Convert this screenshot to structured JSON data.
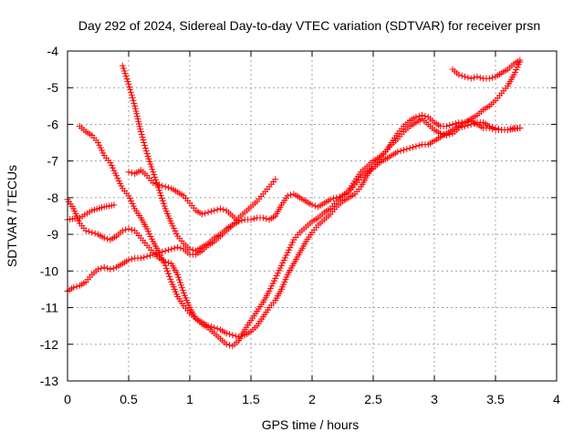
{
  "chart_data": {
    "type": "scatter",
    "title": "Day 292 of 2024, Sidereal Day-to-day VTEC variation (SDTVAR) for receiver prsn",
    "xlabel": "GPS time / hours",
    "ylabel": "SDTVAR / TECUs",
    "xlim": [
      0,
      4
    ],
    "ylim": [
      -13,
      -4
    ],
    "xticks": [
      0,
      0.5,
      1,
      1.5,
      2,
      2.5,
      3,
      3.5,
      4
    ],
    "xtick_labels": [
      "0",
      "0.5",
      "1",
      "1.5",
      "2",
      "2.5",
      "3",
      "3.5",
      "4"
    ],
    "yticks": [
      -13,
      -12,
      -11,
      -10,
      -9,
      -8,
      -7,
      -6,
      -5,
      -4
    ],
    "ytick_labels": [
      "-13",
      "-12",
      "-11",
      "-10",
      "-9",
      "-8",
      "-7",
      "-6",
      "-5",
      "-4"
    ],
    "grid": true,
    "marker": "+",
    "color": "#ff0000",
    "series": [
      {
        "points": [
          [
            0.0,
            -8.6
          ],
          [
            0.1,
            -8.55
          ],
          [
            0.2,
            -8.35
          ],
          [
            0.3,
            -8.25
          ],
          [
            0.38,
            -8.2
          ]
        ]
      },
      {
        "points": [
          [
            0.0,
            -8.05
          ],
          [
            0.05,
            -8.3
          ],
          [
            0.1,
            -8.7
          ],
          [
            0.15,
            -8.9
          ],
          [
            0.2,
            -8.95
          ],
          [
            0.25,
            -9.0
          ],
          [
            0.3,
            -9.1
          ],
          [
            0.35,
            -9.15
          ],
          [
            0.4,
            -9.05
          ],
          [
            0.45,
            -8.9
          ],
          [
            0.5,
            -8.85
          ],
          [
            0.55,
            -8.9
          ],
          [
            0.6,
            -9.1
          ],
          [
            0.65,
            -9.3
          ],
          [
            0.7,
            -9.5
          ],
          [
            0.75,
            -9.65
          ],
          [
            0.8,
            -9.75
          ],
          [
            0.85,
            -9.8
          ],
          [
            0.9,
            -10.1
          ],
          [
            0.95,
            -10.6
          ],
          [
            1.0,
            -11.0
          ],
          [
            1.05,
            -11.3
          ],
          [
            1.1,
            -11.4
          ],
          [
            1.15,
            -11.5
          ],
          [
            1.2,
            -11.55
          ],
          [
            1.25,
            -11.6
          ],
          [
            1.3,
            -11.7
          ],
          [
            1.35,
            -11.75
          ],
          [
            1.4,
            -11.8
          ],
          [
            1.45,
            -11.75
          ],
          [
            1.5,
            -11.65
          ],
          [
            1.55,
            -11.5
          ],
          [
            1.6,
            -11.25
          ],
          [
            1.65,
            -11.0
          ],
          [
            1.7,
            -10.8
          ],
          [
            1.75,
            -10.5
          ],
          [
            1.8,
            -10.1
          ],
          [
            1.85,
            -9.8
          ],
          [
            1.9,
            -9.5
          ],
          [
            1.95,
            -9.2
          ],
          [
            2.0,
            -8.95
          ],
          [
            2.05,
            -8.75
          ],
          [
            2.1,
            -8.6
          ],
          [
            2.15,
            -8.45
          ],
          [
            2.2,
            -8.25
          ],
          [
            2.25,
            -8.1
          ],
          [
            2.3,
            -8.0
          ],
          [
            2.35,
            -7.9
          ],
          [
            2.4,
            -7.7
          ],
          [
            2.45,
            -7.4
          ],
          [
            2.5,
            -7.15
          ],
          [
            2.55,
            -6.95
          ],
          [
            2.6,
            -6.75
          ],
          [
            2.65,
            -6.5
          ],
          [
            2.7,
            -6.25
          ],
          [
            2.75,
            -6.05
          ],
          [
            2.8,
            -5.9
          ],
          [
            2.85,
            -5.8
          ],
          [
            2.9,
            -5.75
          ],
          [
            2.95,
            -5.8
          ],
          [
            3.0,
            -5.95
          ],
          [
            3.05,
            -6.05
          ],
          [
            3.1,
            -6.05
          ],
          [
            3.15,
            -6.0
          ],
          [
            3.2,
            -5.95
          ],
          [
            3.25,
            -5.95
          ],
          [
            3.3,
            -5.9
          ],
          [
            3.35,
            -6.0
          ],
          [
            3.4,
            -6.1
          ],
          [
            3.45,
            -6.1
          ],
          [
            3.5,
            -6.15
          ],
          [
            3.55,
            -6.15
          ],
          [
            3.6,
            -6.15
          ],
          [
            3.65,
            -6.1
          ],
          [
            3.7,
            -6.1
          ]
        ]
      },
      {
        "points": [
          [
            0.0,
            -10.55
          ],
          [
            0.05,
            -10.45
          ],
          [
            0.1,
            -10.4
          ],
          [
            0.15,
            -10.3
          ],
          [
            0.2,
            -10.1
          ],
          [
            0.25,
            -9.95
          ],
          [
            0.3,
            -9.9
          ],
          [
            0.35,
            -9.95
          ],
          [
            0.4,
            -9.9
          ],
          [
            0.45,
            -9.8
          ],
          [
            0.5,
            -9.7
          ],
          [
            0.55,
            -9.65
          ],
          [
            0.6,
            -9.65
          ],
          [
            0.65,
            -9.6
          ],
          [
            0.7,
            -9.55
          ],
          [
            0.75,
            -9.5
          ],
          [
            0.8,
            -9.45
          ],
          [
            0.85,
            -9.4
          ],
          [
            0.9,
            -9.35
          ],
          [
            0.95,
            -9.4
          ],
          [
            1.0,
            -9.55
          ],
          [
            1.05,
            -9.55
          ],
          [
            1.1,
            -9.45
          ],
          [
            1.15,
            -9.3
          ],
          [
            1.2,
            -9.2
          ],
          [
            1.25,
            -9.05
          ],
          [
            1.3,
            -8.9
          ],
          [
            1.35,
            -8.75
          ],
          [
            1.4,
            -8.55
          ],
          [
            1.45,
            -8.4
          ],
          [
            1.5,
            -8.25
          ],
          [
            1.55,
            -8.1
          ],
          [
            1.6,
            -7.9
          ],
          [
            1.65,
            -7.7
          ],
          [
            1.7,
            -7.5
          ]
        ]
      },
      {
        "points": [
          [
            0.1,
            -6.05
          ],
          [
            0.15,
            -6.2
          ],
          [
            0.2,
            -6.3
          ],
          [
            0.25,
            -6.5
          ],
          [
            0.3,
            -6.85
          ],
          [
            0.35,
            -7.05
          ],
          [
            0.4,
            -7.4
          ],
          [
            0.45,
            -7.75
          ],
          [
            0.5,
            -7.95
          ],
          [
            0.55,
            -8.3
          ],
          [
            0.6,
            -8.55
          ],
          [
            0.65,
            -8.85
          ],
          [
            0.7,
            -9.2
          ],
          [
            0.75,
            -9.5
          ],
          [
            0.8,
            -9.85
          ],
          [
            0.85,
            -10.3
          ],
          [
            0.9,
            -10.7
          ],
          [
            0.95,
            -10.95
          ],
          [
            1.0,
            -11.15
          ],
          [
            1.05,
            -11.3
          ],
          [
            1.1,
            -11.45
          ],
          [
            1.15,
            -11.55
          ],
          [
            1.2,
            -11.7
          ],
          [
            1.25,
            -11.85
          ],
          [
            1.3,
            -12.0
          ],
          [
            1.35,
            -12.05
          ],
          [
            1.4,
            -11.9
          ],
          [
            1.45,
            -11.6
          ],
          [
            1.5,
            -11.35
          ],
          [
            1.55,
            -11.1
          ],
          [
            1.6,
            -10.85
          ],
          [
            1.65,
            -10.55
          ],
          [
            1.7,
            -10.2
          ],
          [
            1.75,
            -9.85
          ],
          [
            1.8,
            -9.5
          ],
          [
            1.85,
            -9.15
          ],
          [
            1.9,
            -8.95
          ],
          [
            1.95,
            -8.8
          ],
          [
            2.0,
            -8.65
          ],
          [
            2.05,
            -8.55
          ],
          [
            2.1,
            -8.4
          ],
          [
            2.15,
            -8.3
          ],
          [
            2.2,
            -8.1
          ],
          [
            2.25,
            -7.95
          ],
          [
            2.3,
            -7.8
          ],
          [
            2.35,
            -7.55
          ],
          [
            2.4,
            -7.3
          ],
          [
            2.45,
            -7.15
          ],
          [
            2.5,
            -7.0
          ],
          [
            2.55,
            -6.9
          ],
          [
            2.6,
            -6.75
          ],
          [
            2.65,
            -6.55
          ],
          [
            2.7,
            -6.4
          ],
          [
            2.75,
            -6.2
          ],
          [
            2.8,
            -6.05
          ],
          [
            2.85,
            -5.95
          ],
          [
            2.9,
            -5.85
          ],
          [
            2.95,
            -6.0
          ],
          [
            3.0,
            -6.15
          ],
          [
            3.05,
            -6.25
          ],
          [
            3.1,
            -6.3
          ],
          [
            3.15,
            -6.25
          ],
          [
            3.2,
            -6.1
          ],
          [
            3.25,
            -6.05
          ],
          [
            3.3,
            -6.0
          ],
          [
            3.35,
            -5.95
          ],
          [
            3.4,
            -5.95
          ],
          [
            3.45,
            -6.05
          ],
          [
            3.5,
            -6.1
          ],
          [
            3.55,
            -6.15
          ],
          [
            3.6,
            -6.15
          ],
          [
            3.7,
            -6.1
          ]
        ]
      },
      {
        "points": [
          [
            0.45,
            -4.4
          ],
          [
            0.5,
            -4.9
          ],
          [
            0.55,
            -5.5
          ],
          [
            0.6,
            -6.2
          ],
          [
            0.65,
            -6.8
          ],
          [
            0.7,
            -7.3
          ],
          [
            0.75,
            -7.8
          ],
          [
            0.8,
            -8.3
          ],
          [
            0.85,
            -8.7
          ],
          [
            0.9,
            -9.05
          ],
          [
            0.95,
            -9.25
          ],
          [
            1.0,
            -9.4
          ],
          [
            1.05,
            -9.45
          ],
          [
            1.1,
            -9.35
          ],
          [
            1.15,
            -9.25
          ],
          [
            1.2,
            -9.1
          ],
          [
            1.25,
            -9.0
          ],
          [
            1.3,
            -8.85
          ],
          [
            1.35,
            -8.75
          ],
          [
            1.4,
            -8.65
          ],
          [
            1.45,
            -8.6
          ],
          [
            1.5,
            -8.6
          ],
          [
            1.55,
            -8.55
          ],
          [
            1.6,
            -8.55
          ],
          [
            1.65,
            -8.6
          ],
          [
            1.7,
            -8.5
          ],
          [
            1.75,
            -8.2
          ],
          [
            1.8,
            -7.95
          ],
          [
            1.85,
            -7.9
          ],
          [
            1.9,
            -8.0
          ],
          [
            1.95,
            -8.1
          ],
          [
            2.0,
            -8.2
          ],
          [
            2.05,
            -8.25
          ],
          [
            2.1,
            -8.15
          ],
          [
            2.15,
            -8.05
          ],
          [
            2.2,
            -8.0
          ],
          [
            2.25,
            -7.95
          ],
          [
            2.3,
            -7.85
          ],
          [
            2.35,
            -7.65
          ],
          [
            2.4,
            -7.45
          ],
          [
            2.45,
            -7.3
          ],
          [
            2.5,
            -7.2
          ],
          [
            2.55,
            -7.05
          ],
          [
            2.6,
            -6.95
          ],
          [
            2.65,
            -6.85
          ],
          [
            2.7,
            -6.75
          ],
          [
            2.75,
            -6.7
          ],
          [
            2.8,
            -6.65
          ],
          [
            2.85,
            -6.6
          ],
          [
            2.9,
            -6.55
          ],
          [
            2.95,
            -6.55
          ],
          [
            3.0,
            -6.45
          ],
          [
            3.05,
            -6.35
          ],
          [
            3.1,
            -6.25
          ],
          [
            3.15,
            -6.15
          ],
          [
            3.2,
            -6.05
          ],
          [
            3.25,
            -5.95
          ],
          [
            3.3,
            -5.85
          ],
          [
            3.35,
            -5.75
          ],
          [
            3.4,
            -5.6
          ],
          [
            3.45,
            -5.5
          ],
          [
            3.5,
            -5.35
          ],
          [
            3.55,
            -5.15
          ],
          [
            3.6,
            -4.95
          ],
          [
            3.65,
            -4.65
          ],
          [
            3.7,
            -4.3
          ]
        ]
      },
      {
        "points": [
          [
            0.5,
            -7.3
          ],
          [
            0.55,
            -7.35
          ],
          [
            0.6,
            -7.25
          ],
          [
            0.65,
            -7.4
          ],
          [
            0.7,
            -7.6
          ],
          [
            0.75,
            -7.65
          ],
          [
            0.8,
            -7.7
          ],
          [
            0.85,
            -7.75
          ],
          [
            0.9,
            -7.85
          ],
          [
            0.95,
            -7.95
          ],
          [
            1.0,
            -8.15
          ],
          [
            1.05,
            -8.35
          ],
          [
            1.1,
            -8.45
          ],
          [
            1.15,
            -8.4
          ],
          [
            1.2,
            -8.35
          ],
          [
            1.25,
            -8.3
          ],
          [
            1.3,
            -8.35
          ],
          [
            1.35,
            -8.5
          ],
          [
            1.4,
            -8.65
          ]
        ]
      },
      {
        "points": [
          [
            3.15,
            -4.5
          ],
          [
            3.2,
            -4.65
          ],
          [
            3.25,
            -4.7
          ],
          [
            3.3,
            -4.75
          ],
          [
            3.35,
            -4.7
          ],
          [
            3.4,
            -4.75
          ],
          [
            3.45,
            -4.75
          ],
          [
            3.5,
            -4.7
          ],
          [
            3.55,
            -4.6
          ],
          [
            3.6,
            -4.5
          ],
          [
            3.65,
            -4.35
          ],
          [
            3.7,
            -4.25
          ]
        ]
      }
    ]
  }
}
